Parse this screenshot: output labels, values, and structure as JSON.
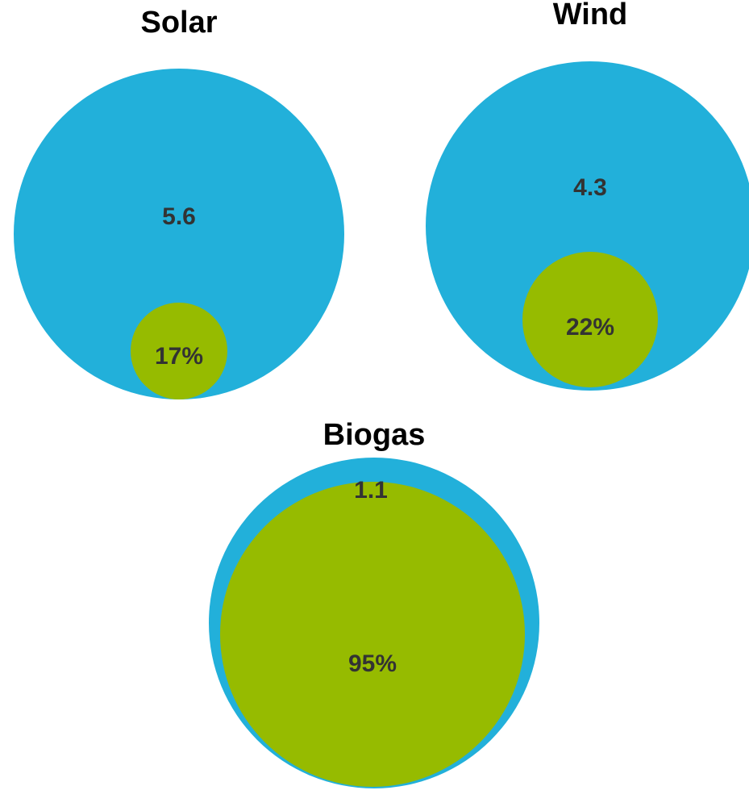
{
  "chart_data": [
    {
      "type": "nested-bubble",
      "title": "Solar",
      "total": 5.6,
      "total_label": "5.6",
      "share_percent": 17,
      "share_label": "17%"
    },
    {
      "type": "nested-bubble",
      "title": "Wind",
      "total": 4.3,
      "total_label": "4.3",
      "share_percent": 22,
      "share_label": "22%"
    },
    {
      "type": "nested-bubble",
      "title": "Biogas",
      "total": 1.1,
      "total_label": "1.1",
      "share_percent": 95,
      "share_label": "95%"
    }
  ],
  "colors": {
    "outer_circle": "#22b0da",
    "inner_circle": "#96bb00",
    "label_text": "#333333"
  }
}
